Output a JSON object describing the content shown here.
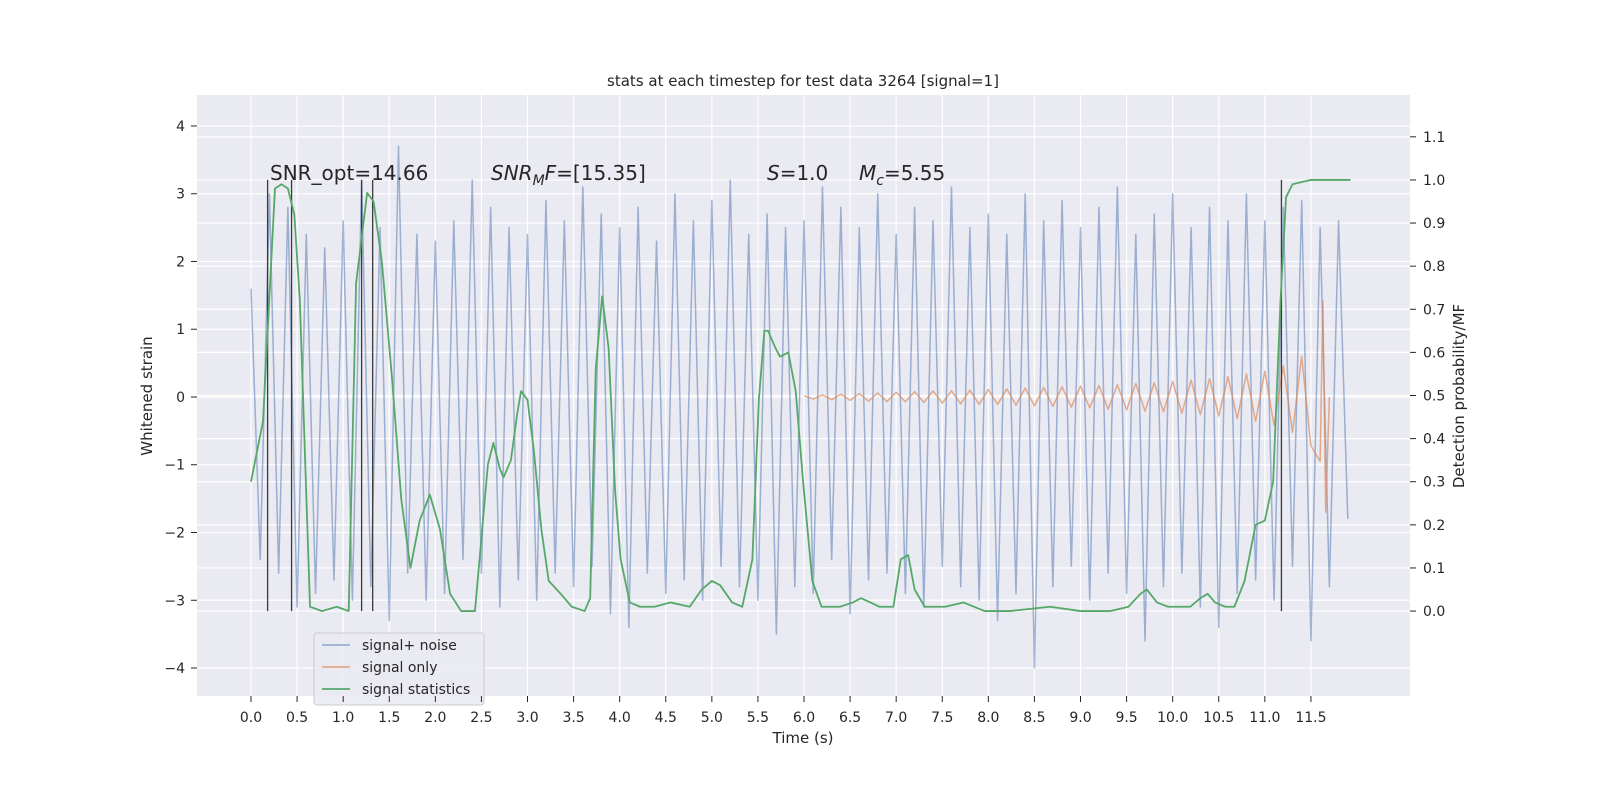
{
  "chart_data": {
    "type": "line",
    "title": "stats at each timestep for test data 3264 [signal=1]",
    "xlabel": "Time (s)",
    "ylabel": "Whitened strain",
    "y2label": "Detection probability/MF",
    "xlim": [
      -0.586,
      12.575
    ],
    "ylim": [
      -4.413,
      4.457
    ],
    "y2lim": [
      -0.197,
      1.197
    ],
    "xticks": [
      {
        "value": 0,
        "label": "0.0"
      },
      0.5,
      {
        "value": 1,
        "label": "1.0"
      },
      1.5,
      {
        "value": 2,
        "label": "2.0"
      },
      2.5,
      {
        "value": 3,
        "label": "3.0"
      },
      3.5,
      {
        "value": 4,
        "label": "4.0"
      },
      4.5,
      {
        "value": 5,
        "label": "5.0"
      },
      5.5,
      {
        "value": 6,
        "label": "6.0"
      },
      6.5,
      {
        "value": 7,
        "label": "7.0"
      },
      7.5,
      {
        "value": 8,
        "label": "8.0"
      },
      8.5,
      {
        "value": 9,
        "label": "9.0"
      },
      9.5,
      {
        "value": 10,
        "label": "10.0"
      },
      10.5,
      {
        "value": 11,
        "label": "11.0"
      },
      11.5
    ],
    "yticks": [
      {
        "value": -4,
        "label": "−4"
      },
      {
        "value": -3,
        "label": "−3"
      },
      {
        "value": -2,
        "label": "−2"
      },
      {
        "value": -1,
        "label": "−1"
      },
      0,
      1,
      2,
      3,
      4
    ],
    "y2ticks": [
      {
        "value": 0,
        "label": "0.0"
      },
      0.1,
      0.2,
      0.3,
      0.4,
      0.5,
      0.6,
      0.7,
      0.8,
      0.9,
      {
        "value": 1,
        "label": "1.0"
      },
      1.1
    ],
    "grid": true,
    "legend": "lower left",
    "annotations": [
      [
        {
          "text": "SNR_opt=14.66"
        }
      ],
      [
        {
          "text": "SNR",
          "italic": true
        },
        {
          "text": "M",
          "italic": true,
          "sub": true
        },
        {
          "text": "F",
          "italic": true
        },
        {
          "text": "=[15.35]"
        }
      ],
      [
        {
          "text": "S",
          "italic": true
        },
        {
          "text": "=1.0"
        }
      ],
      [
        {
          "text": "M",
          "italic": true
        },
        {
          "text": "c",
          "italic": true,
          "sub": true
        },
        {
          "text": "=5.55"
        }
      ]
    ],
    "markers": {
      "x": [
        0.18,
        0.44,
        1.2,
        1.32,
        11.18
      ],
      "ymin": 0,
      "ymax": 1,
      "axis": "y2",
      "color": "#3a3a3a"
    },
    "series": [
      {
        "name": "signal+ noise",
        "color": "#4c72b0",
        "opacity": 0.5,
        "x": [
          0.0,
          0.1,
          0.2,
          0.3,
          0.4,
          0.5,
          0.6,
          0.7,
          0.8,
          0.9,
          1.0,
          1.1,
          1.2,
          1.3,
          1.4,
          1.5,
          1.6,
          1.7,
          1.8,
          1.9,
          2.0,
          2.1,
          2.2,
          2.3,
          2.4,
          2.5,
          2.6,
          2.7,
          2.8,
          2.9,
          3.0,
          3.1,
          3.2,
          3.3,
          3.4,
          3.5,
          3.6,
          3.7,
          3.8,
          3.9,
          4.0,
          4.1,
          4.2,
          4.3,
          4.4,
          4.5,
          4.6,
          4.7,
          4.8,
          4.9,
          5.0,
          5.1,
          5.2,
          5.3,
          5.4,
          5.5,
          5.6,
          5.7,
          5.8,
          5.9,
          6.0,
          6.1,
          6.2,
          6.3,
          6.4,
          6.5,
          6.6,
          6.7,
          6.8,
          6.9,
          7.0,
          7.1,
          7.2,
          7.3,
          7.4,
          7.5,
          7.6,
          7.7,
          7.8,
          7.9,
          8.0,
          8.1,
          8.2,
          8.3,
          8.4,
          8.5,
          8.6,
          8.7,
          8.8,
          8.9,
          9.0,
          9.1,
          9.2,
          9.3,
          9.4,
          9.5,
          9.6,
          9.7,
          9.8,
          9.9,
          10.0,
          10.1,
          10.2,
          10.3,
          10.4,
          10.5,
          10.6,
          10.7,
          10.8,
          10.9,
          11.0,
          11.1,
          11.2,
          11.3,
          11.4,
          11.5,
          11.6,
          11.7,
          11.8,
          11.9
        ],
        "values": [
          1.6,
          -2.4,
          3.0,
          -2.6,
          2.8,
          -3.1,
          2.4,
          -2.9,
          2.2,
          -2.7,
          2.6,
          -3.0,
          3.2,
          -2.8,
          2.5,
          -3.3,
          3.7,
          -2.6,
          2.4,
          -3.0,
          2.3,
          -2.9,
          2.6,
          -2.4,
          3.2,
          -2.6,
          2.8,
          -3.1,
          2.5,
          -2.7,
          2.4,
          -3.0,
          2.9,
          -2.6,
          2.6,
          -2.8,
          3.1,
          -2.5,
          2.7,
          -3.2,
          2.5,
          -3.4,
          2.8,
          -2.6,
          2.3,
          -2.9,
          3.0,
          -2.7,
          2.6,
          -3.0,
          2.9,
          -2.5,
          3.2,
          -2.8,
          2.4,
          -3.0,
          2.7,
          -3.5,
          2.5,
          -2.8,
          2.6,
          -2.9,
          3.1,
          -2.4,
          2.8,
          -3.2,
          2.5,
          -2.7,
          3.0,
          -2.6,
          2.4,
          -2.9,
          2.8,
          -3.1,
          2.6,
          -2.5,
          3.1,
          -2.8,
          2.5,
          -3.0,
          2.7,
          -3.3,
          2.4,
          -2.9,
          3.0,
          -4.0,
          2.6,
          -2.8,
          2.9,
          -2.5,
          2.5,
          -3.0,
          2.8,
          -2.6,
          3.1,
          -2.9,
          2.4,
          -3.6,
          2.7,
          -2.8,
          3.0,
          -2.6,
          2.5,
          -3.1,
          2.8,
          -3.4,
          2.6,
          -2.9,
          3.0,
          -2.7,
          2.6,
          -3.0,
          2.8,
          -2.5,
          2.9,
          -3.6,
          2.5,
          -2.8,
          2.6,
          -1.8
        ]
      },
      {
        "name": "signal only",
        "color": "#dd8452",
        "opacity": 0.65,
        "x": [
          6.0,
          6.1,
          6.2,
          6.3,
          6.4,
          6.5,
          6.6,
          6.7,
          6.8,
          6.9,
          7.0,
          7.1,
          7.2,
          7.3,
          7.4,
          7.5,
          7.6,
          7.7,
          7.8,
          7.9,
          8.0,
          8.1,
          8.2,
          8.3,
          8.4,
          8.5,
          8.6,
          8.7,
          8.8,
          8.9,
          9.0,
          9.1,
          9.2,
          9.3,
          9.4,
          9.5,
          9.6,
          9.7,
          9.8,
          9.9,
          10.0,
          10.1,
          10.2,
          10.3,
          10.4,
          10.5,
          10.6,
          10.7,
          10.8,
          10.9,
          11.0,
          11.1,
          11.2,
          11.3,
          11.4,
          11.5,
          11.6,
          11.63,
          11.66,
          11.7
        ],
        "values": [
          0.02,
          -0.03,
          0.03,
          -0.04,
          0.04,
          -0.05,
          0.05,
          -0.06,
          0.06,
          -0.07,
          0.07,
          -0.07,
          0.08,
          -0.08,
          0.09,
          -0.09,
          0.09,
          -0.1,
          0.1,
          -0.11,
          0.11,
          -0.11,
          0.12,
          -0.12,
          0.13,
          -0.13,
          0.14,
          -0.14,
          0.15,
          -0.15,
          0.16,
          -0.16,
          0.17,
          -0.18,
          0.18,
          -0.19,
          0.2,
          -0.21,
          0.21,
          -0.22,
          0.23,
          -0.24,
          0.25,
          -0.26,
          0.27,
          -0.28,
          0.3,
          -0.32,
          0.34,
          -0.36,
          0.38,
          -0.42,
          0.46,
          -0.52,
          0.6,
          -0.72,
          -0.95,
          1.42,
          -1.7,
          0
        ]
      },
      {
        "name": "signal statistics",
        "color": "#55a868",
        "opacity": 1,
        "axis": "y2",
        "x": [
          0.0,
          0.13,
          0.26,
          0.33,
          0.4,
          0.47,
          0.53,
          0.64,
          0.77,
          0.93,
          1.06,
          1.14,
          1.26,
          1.33,
          1.42,
          1.53,
          1.63,
          1.73,
          1.83,
          1.94,
          2.05,
          2.16,
          2.28,
          2.43,
          2.57,
          2.63,
          2.7,
          2.74,
          2.82,
          2.89,
          2.93,
          3.0,
          3.07,
          3.15,
          3.23,
          3.36,
          3.48,
          3.62,
          3.68,
          3.74,
          3.81,
          3.88,
          3.95,
          4.01,
          4.11,
          4.22,
          4.38,
          4.55,
          4.76,
          4.89,
          5.0,
          5.09,
          5.22,
          5.33,
          5.44,
          5.51,
          5.57,
          5.61,
          5.69,
          5.74,
          5.83,
          5.91,
          5.99,
          6.09,
          6.19,
          6.39,
          6.53,
          6.62,
          6.72,
          6.82,
          6.97,
          7.05,
          7.13,
          7.2,
          7.31,
          7.53,
          7.73,
          7.96,
          8.23,
          8.67,
          9.0,
          9.32,
          9.52,
          9.65,
          9.72,
          9.83,
          9.95,
          10.19,
          10.3,
          10.38,
          10.46,
          10.57,
          10.67,
          10.78,
          10.9,
          11.0,
          11.09,
          11.17,
          11.23,
          11.3,
          11.5,
          11.93
        ],
        "values": [
          0.3,
          0.44,
          0.98,
          0.99,
          0.98,
          0.92,
          0.72,
          0.01,
          0.0,
          0.01,
          0.0,
          0.76,
          0.97,
          0.95,
          0.81,
          0.54,
          0.26,
          0.1,
          0.21,
          0.27,
          0.19,
          0.04,
          0.0,
          0.0,
          0.34,
          0.39,
          0.33,
          0.31,
          0.35,
          0.46,
          0.51,
          0.49,
          0.37,
          0.19,
          0.07,
          0.04,
          0.01,
          0.0,
          0.03,
          0.56,
          0.73,
          0.61,
          0.28,
          0.12,
          0.02,
          0.01,
          0.01,
          0.02,
          0.01,
          0.05,
          0.07,
          0.06,
          0.02,
          0.01,
          0.12,
          0.49,
          0.65,
          0.65,
          0.61,
          0.59,
          0.6,
          0.51,
          0.3,
          0.07,
          0.01,
          0.01,
          0.02,
          0.03,
          0.02,
          0.01,
          0.01,
          0.12,
          0.13,
          0.05,
          0.01,
          0.01,
          0.02,
          0.0,
          0.0,
          0.01,
          0.0,
          0.0,
          0.01,
          0.04,
          0.05,
          0.02,
          0.01,
          0.01,
          0.03,
          0.04,
          0.02,
          0.01,
          0.01,
          0.07,
          0.2,
          0.21,
          0.3,
          0.72,
          0.96,
          0.99,
          1.0,
          1.0
        ]
      }
    ]
  }
}
